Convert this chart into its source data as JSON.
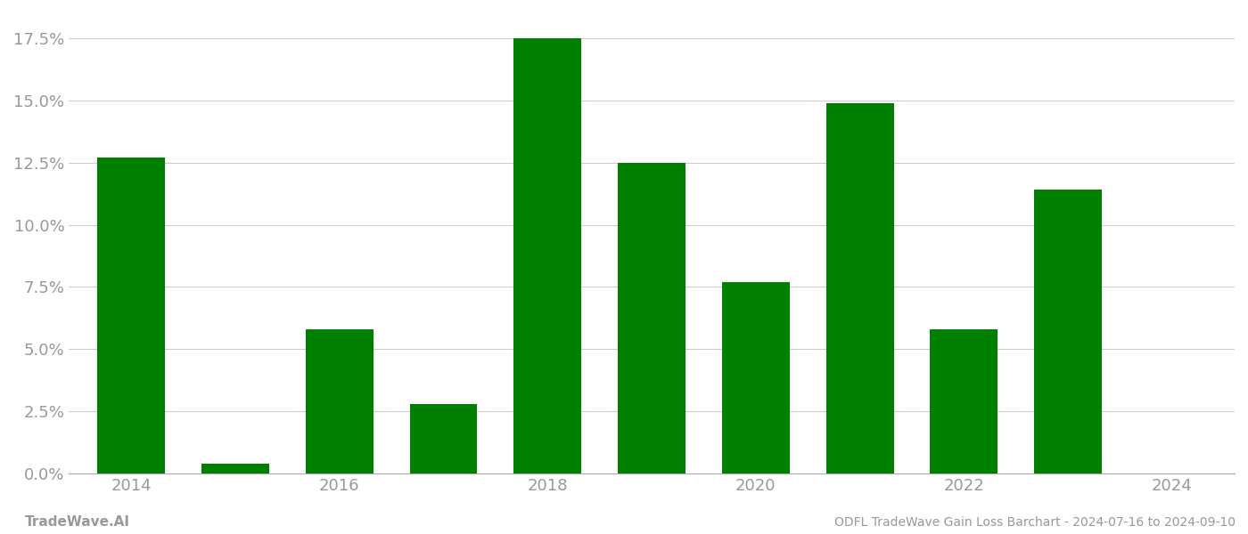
{
  "years": [
    2014,
    2015,
    2016,
    2017,
    2018,
    2019,
    2020,
    2021,
    2022,
    2023,
    2024
  ],
  "values": [
    0.127,
    0.004,
    0.058,
    0.028,
    0.175,
    0.125,
    0.077,
    0.149,
    0.058,
    0.114,
    0.0
  ],
  "bar_color": "#008000",
  "background_color": "#ffffff",
  "footer_left": "TradeWave.AI",
  "footer_right": "ODFL TradeWave Gain Loss Barchart - 2024-07-16 to 2024-09-10",
  "ylim_min": 0.0,
  "ylim_max": 0.185,
  "yticks": [
    0.0,
    0.025,
    0.05,
    0.075,
    0.1,
    0.125,
    0.15,
    0.175
  ],
  "ytick_labels": [
    "0.0%",
    "2.5%",
    "5.0%",
    "7.5%",
    "10.0%",
    "12.5%",
    "15.0%",
    "17.5%"
  ],
  "xtick_labels": [
    "2014",
    "",
    "2016",
    "",
    "2018",
    "",
    "2020",
    "",
    "2022",
    "",
    "2024"
  ],
  "grid_color": "#cccccc",
  "tick_label_color": "#999999",
  "footer_color": "#999999",
  "bar_width": 0.65,
  "spine_color": "#aaaaaa",
  "figsize": [
    14.0,
    6.0
  ],
  "dpi": 100
}
